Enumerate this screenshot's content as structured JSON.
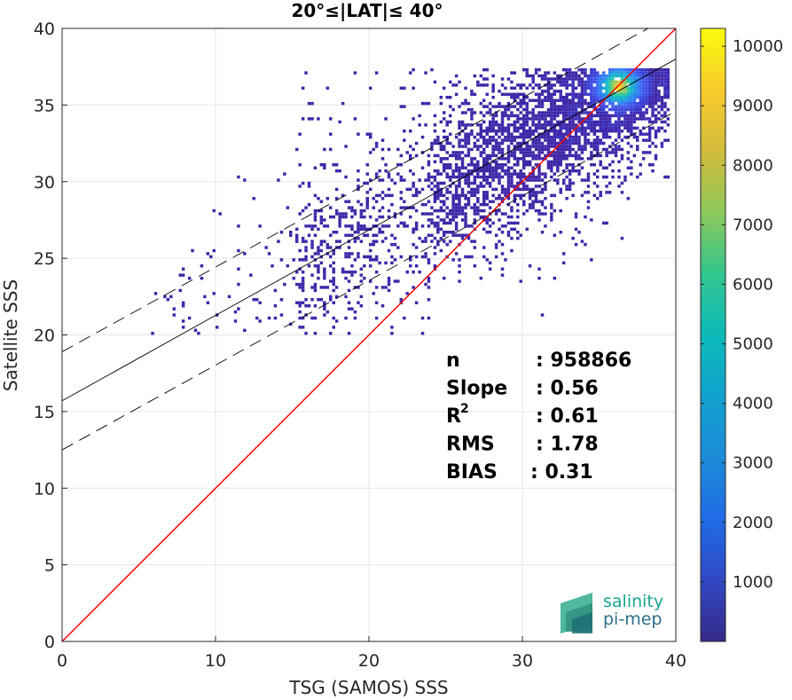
{
  "chart_data": {
    "type": "heatmap",
    "title": "20°≤|LAT|≤ 40°",
    "xlabel": "TSG (SAMOS) SSS",
    "ylabel": "Satellite SSS",
    "xlim": [
      0,
      40
    ],
    "ylim": [
      0,
      40
    ],
    "xticks": [
      "0",
      "10",
      "20",
      "30",
      "40"
    ],
    "yticks": [
      "0",
      "5",
      "10",
      "15",
      "20",
      "25",
      "30",
      "35",
      "40"
    ],
    "grid": true,
    "lines": [
      {
        "name": "1:1",
        "color": "#ff0000",
        "x": [
          0,
          40
        ],
        "y": [
          0,
          40
        ]
      },
      {
        "name": "fit",
        "color": "#000000",
        "x": [
          0,
          40
        ],
        "y": [
          15.7,
          38.0
        ]
      },
      {
        "name": "fit-upper",
        "color": "#000000",
        "dash": true,
        "x": [
          0,
          40
        ],
        "y": [
          18.9,
          41.0
        ]
      },
      {
        "name": "fit-lower",
        "color": "#000000",
        "dash": true,
        "x": [
          0,
          40
        ],
        "y": [
          12.5,
          34.6
        ]
      }
    ],
    "density": {
      "max_location": {
        "x": 36.2,
        "y": 36.1
      },
      "max_count": 10300
    },
    "colorbar": {
      "min": 0,
      "max": 10300,
      "ticks": [
        "1000",
        "2000",
        "3000",
        "4000",
        "5000",
        "6000",
        "7000",
        "8000",
        "9000",
        "10000"
      ],
      "colormap": "parula"
    },
    "stats": [
      {
        "label": "n",
        "value": ": 958866"
      },
      {
        "label": "Slope",
        "value": ": 0.56"
      },
      {
        "label": "R",
        "sup": "2",
        "value": ": 0.61"
      },
      {
        "label": "RMS",
        "value": ": 1.78"
      },
      {
        "label": "BIAS",
        "value": ": 0.31"
      }
    ]
  },
  "logo": {
    "line1": "salinity",
    "line2": "pi-mep"
  }
}
